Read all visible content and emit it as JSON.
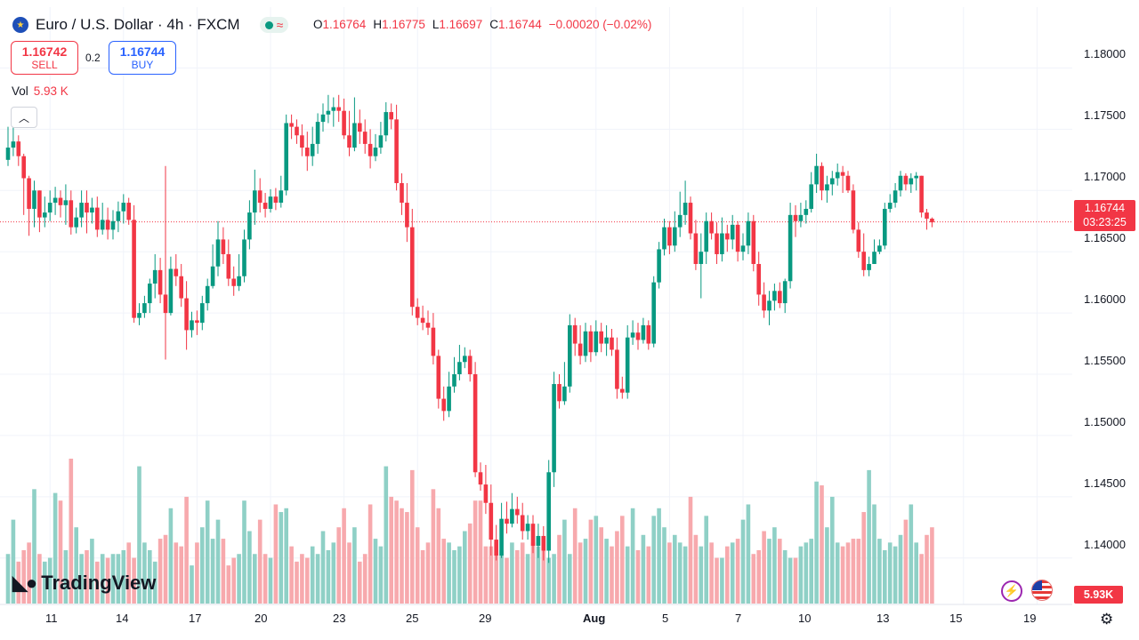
{
  "header": {
    "title": "Euro / U.S. Dollar · 4h · FXCM",
    "symbol_icon": "euro-flag-icon",
    "ohlc": {
      "open_label": "O",
      "open": "1.16764",
      "high_label": "H",
      "high": "1.16775",
      "low_label": "L",
      "low": "1.16697",
      "close_label": "C",
      "close": "1.16744",
      "change": "−0.00020 (−0.02%)"
    }
  },
  "trade": {
    "sell_price": "1.16742",
    "sell_label": "SELL",
    "spread": "0.2",
    "buy_price": "1.16744",
    "buy_label": "BUY"
  },
  "volume_legend": {
    "label": "Vol",
    "value": "5.93 K"
  },
  "price_tag": {
    "price": "1.16744",
    "countdown": "03:23:25"
  },
  "volume_tag": "5.93K",
  "logo": "TradingView",
  "colors": {
    "up": "#089981",
    "down": "#f23645",
    "up_vol": "#8fd0c6",
    "down_vol": "#f7a9ad",
    "grid": "#f0f3fa"
  },
  "icons": {
    "collapse": "chevron-up-icon",
    "alert": "lightning-icon",
    "flag": "us-flag-icon",
    "settings": "gear-icon"
  },
  "chart_data": {
    "type": "candlestick",
    "price_axis": {
      "ticks": [
        "1.18000",
        "1.17500",
        "1.17000",
        "1.16500",
        "1.16000",
        "1.15500",
        "1.15000",
        "1.14500",
        "1.14000"
      ],
      "range": [
        1.1365,
        1.1825
      ]
    },
    "time_axis": {
      "ticks": [
        {
          "label": "11",
          "bar": 8
        },
        {
          "label": "14",
          "bar": 22
        },
        {
          "label": "17",
          "bar": 36
        },
        {
          "label": "20",
          "bar": 50
        },
        {
          "label": "23",
          "bar": 64
        },
        {
          "label": "25",
          "bar": 78
        },
        {
          "label": "29",
          "bar": 92
        },
        {
          "label": "Aug",
          "bar": 112
        },
        {
          "label": "5",
          "bar": 126
        },
        {
          "label": "7",
          "bar": 140
        },
        {
          "label": "10",
          "bar": 154
        },
        {
          "label": "13",
          "bar": 168
        },
        {
          "label": "15",
          "bar": 182
        },
        {
          "label": "19",
          "bar": 196
        }
      ]
    },
    "current_price": 1.16744,
    "closes": [
      1.1735,
      1.174,
      1.1728,
      1.171,
      1.1685,
      1.17,
      1.1678,
      1.1682,
      1.169,
      1.1694,
      1.1688,
      1.1692,
      1.167,
      1.1678,
      1.169,
      1.1682,
      1.1686,
      1.1668,
      1.1676,
      1.1668,
      1.1675,
      1.1683,
      1.169,
      1.1676,
      1.1596,
      1.16,
      1.1608,
      1.1624,
      1.1635,
      1.1615,
      1.16,
      1.1636,
      1.163,
      1.1612,
      1.1586,
      1.1594,
      1.1592,
      1.1608,
      1.1622,
      1.1638,
      1.166,
      1.1648,
      1.1628,
      1.1622,
      1.163,
      1.166,
      1.1682,
      1.17,
      1.169,
      1.1685,
      1.1695,
      1.169,
      1.17,
      1.1755,
      1.1752,
      1.1745,
      1.1735,
      1.1728,
      1.1738,
      1.1756,
      1.1762,
      1.1765,
      1.1768,
      1.1765,
      1.1745,
      1.1735,
      1.1755,
      1.1748,
      1.1738,
      1.1728,
      1.1735,
      1.1745,
      1.1764,
      1.1758,
      1.1706,
      1.169,
      1.167,
      1.1605,
      1.1596,
      1.1592,
      1.1588,
      1.1565,
      1.153,
      1.152,
      1.154,
      1.155,
      1.156,
      1.1565,
      1.155,
      1.147,
      1.146,
      1.1445,
      1.1415,
      1.1402,
      1.1432,
      1.1428,
      1.144,
      1.1435,
      1.1422,
      1.1428,
      1.141,
      1.1418,
      1.1406,
      1.147,
      1.1542,
      1.1528,
      1.154,
      1.159,
      1.1575,
      1.1565,
      1.1585,
      1.1568,
      1.1585,
      1.1575,
      1.158,
      1.157,
      1.1538,
      1.1535,
      1.158,
      1.1584,
      1.1578,
      1.159,
      1.1575,
      1.1625,
      1.1652,
      1.167,
      1.1655,
      1.167,
      1.168,
      1.169,
      1.1665,
      1.164,
      1.165,
      1.1675,
      1.1665,
      1.1648,
      1.1665,
      1.166,
      1.1672,
      1.165,
      1.1655,
      1.1675,
      1.164,
      1.1615,
      1.1602,
      1.161,
      1.1618,
      1.1608,
      1.1626,
      1.168,
      1.1675,
      1.168,
      1.1685,
      1.1705,
      1.172,
      1.17,
      1.1705,
      1.171,
      1.1715,
      1.1712,
      1.17,
      1.1668,
      1.165,
      1.1635,
      1.164,
      1.165,
      1.1655,
      1.1685,
      1.169,
      1.17,
      1.1712,
      1.1705,
      1.171,
      1.1712,
      1.1682,
      1.1677,
      1.1674
    ],
    "highs": [
      1.1752,
      1.1752,
      1.1745,
      1.173,
      1.1712,
      1.1708,
      1.17,
      1.1695,
      1.17,
      1.1703,
      1.17,
      1.1705,
      1.17,
      1.1686,
      1.17,
      1.17,
      1.1694,
      1.1695,
      1.169,
      1.1686,
      1.1684,
      1.1691,
      1.1697,
      1.1694,
      1.1688,
      1.1608,
      1.1614,
      1.1628,
      1.1648,
      1.1645,
      1.172,
      1.1646,
      1.1648,
      1.164,
      1.1626,
      1.1601,
      1.1602,
      1.1614,
      1.1628,
      1.1656,
      1.1675,
      1.167,
      1.166,
      1.1638,
      1.1648,
      1.1668,
      1.1692,
      1.1717,
      1.171,
      1.1698,
      1.1701,
      1.1702,
      1.1712,
      1.1762,
      1.1762,
      1.1758,
      1.1754,
      1.1748,
      1.1752,
      1.1763,
      1.1771,
      1.1778,
      1.1776,
      1.1778,
      1.1775,
      1.1765,
      1.1776,
      1.1766,
      1.1758,
      1.175,
      1.1746,
      1.1756,
      1.1772,
      1.1771,
      1.177,
      1.1714,
      1.1706,
      1.1685,
      1.1612,
      1.1606,
      1.1602,
      1.16,
      1.157,
      1.154,
      1.1552,
      1.1564,
      1.1574,
      1.1572,
      1.157,
      1.156,
      1.1478,
      1.1476,
      1.146,
      1.1427,
      1.1445,
      1.1446,
      1.1453,
      1.145,
      1.1445,
      1.1435,
      1.1435,
      1.1428,
      1.1426,
      1.148,
      1.1552,
      1.155,
      1.156,
      1.1599,
      1.1596,
      1.159,
      1.1592,
      1.159,
      1.1594,
      1.1592,
      1.159,
      1.1587,
      1.158,
      1.1548,
      1.159,
      1.1594,
      1.1592,
      1.1596,
      1.1594,
      1.163,
      1.1658,
      1.1677,
      1.1675,
      1.1683,
      1.1699,
      1.1708,
      1.1695,
      1.1676,
      1.1665,
      1.1682,
      1.1682,
      1.1674,
      1.1678,
      1.1672,
      1.168,
      1.1675,
      1.1665,
      1.1682,
      1.168,
      1.165,
      1.1625,
      1.1618,
      1.1624,
      1.1625,
      1.1628,
      1.169,
      1.1688,
      1.169,
      1.1692,
      1.1715,
      1.173,
      1.1723,
      1.1712,
      1.1716,
      1.1722,
      1.172,
      1.1716,
      1.1705,
      1.1674,
      1.1665,
      1.1646,
      1.166,
      1.166,
      1.169,
      1.1697,
      1.1706,
      1.1716,
      1.1714,
      1.1714,
      1.1715,
      1.1712,
      1.1685,
      1.1678
    ],
    "lows": [
      1.172,
      1.1728,
      1.172,
      1.168,
      1.1663,
      1.167,
      1.1666,
      1.167,
      1.1675,
      1.168,
      1.1678,
      1.1672,
      1.1664,
      1.1665,
      1.167,
      1.1665,
      1.1673,
      1.1662,
      1.1664,
      1.166,
      1.166,
      1.1666,
      1.1673,
      1.1672,
      1.1592,
      1.159,
      1.1596,
      1.16,
      1.1612,
      1.1608,
      1.1562,
      1.1598,
      1.1622,
      1.1605,
      1.157,
      1.158,
      1.1582,
      1.1586,
      1.1602,
      1.162,
      1.163,
      1.164,
      1.1622,
      1.1614,
      1.1618,
      1.1625,
      1.1652,
      1.1672,
      1.1682,
      1.1678,
      1.1682,
      1.1684,
      1.1686,
      1.1696,
      1.1742,
      1.1738,
      1.1728,
      1.1716,
      1.172,
      1.173,
      1.1748,
      1.1755,
      1.1752,
      1.1756,
      1.1742,
      1.1728,
      1.1732,
      1.1738,
      1.173,
      1.1718,
      1.1724,
      1.173,
      1.174,
      1.175,
      1.17,
      1.168,
      1.1658,
      1.1598,
      1.159,
      1.1586,
      1.1582,
      1.1558,
      1.1522,
      1.1512,
      1.1515,
      1.1535,
      1.1545,
      1.1555,
      1.1544,
      1.1466,
      1.1455,
      1.1436,
      1.1402,
      1.1398,
      1.14,
      1.142,
      1.1425,
      1.1428,
      1.1415,
      1.1415,
      1.1404,
      1.14,
      1.1398,
      1.1396,
      1.1458,
      1.1522,
      1.1525,
      1.1535,
      1.1565,
      1.1558,
      1.156,
      1.156,
      1.1565,
      1.1568,
      1.1565,
      1.1565,
      1.153,
      1.153,
      1.153,
      1.1574,
      1.157,
      1.1575,
      1.157,
      1.1572,
      1.162,
      1.1647,
      1.1648,
      1.165,
      1.1662,
      1.1672,
      1.166,
      1.1635,
      1.1612,
      1.164,
      1.166,
      1.164,
      1.1642,
      1.165,
      1.1652,
      1.1642,
      1.1643,
      1.1648,
      1.1634,
      1.1606,
      1.1596,
      1.159,
      1.1602,
      1.1604,
      1.16,
      1.162,
      1.1662,
      1.167,
      1.1673,
      1.1682,
      1.1698,
      1.1692,
      1.169,
      1.1696,
      1.1704,
      1.1698,
      1.1698,
      1.1665,
      1.1645,
      1.163,
      1.163,
      1.164,
      1.1648,
      1.1652,
      1.1682,
      1.1686,
      1.1695,
      1.17,
      1.1698,
      1.17,
      1.1678,
      1.1668,
      1.167
    ],
    "volume": [
      1.3,
      2.2,
      1.1,
      1.4,
      1.6,
      3.0,
      1.3,
      1.1,
      1.2,
      2.9,
      2.7,
      1.4,
      3.8,
      2.0,
      1.3,
      1.4,
      1.7,
      1.1,
      1.3,
      1.2,
      1.3,
      1.3,
      1.4,
      1.6,
      1.2,
      3.6,
      1.6,
      1.4,
      1.1,
      1.7,
      1.8,
      2.5,
      1.6,
      1.5,
      2.8,
      1.0,
      1.6,
      2.0,
      2.7,
      1.7,
      2.2,
      1.7,
      1.0,
      1.2,
      1.3,
      2.7,
      1.9,
      1.3,
      2.2,
      1.3,
      1.2,
      2.6,
      2.4,
      2.5,
      1.5,
      1.1,
      1.3,
      1.2,
      1.5,
      1.3,
      1.9,
      1.4,
      1.6,
      2.0,
      2.5,
      1.6,
      2.0,
      1.1,
      1.3,
      2.6,
      1.7,
      1.5,
      3.6,
      2.8,
      2.7,
      2.5,
      2.4,
      3.5,
      2.0,
      1.4,
      1.6,
      3.0,
      2.5,
      1.7,
      1.6,
      1.4,
      1.5,
      1.9,
      2.1,
      2.7,
      2.7,
      1.5,
      1.5,
      1.6,
      1.4,
      1.2,
      1.6,
      1.4,
      1.6,
      1.3,
      1.6,
      1.5,
      1.4,
      1.2,
      1.3,
      1.8,
      2.2,
      1.3,
      2.5,
      1.6,
      1.7,
      2.2,
      2.3,
      2.0,
      1.7,
      1.5,
      1.9,
      2.3,
      1.5,
      2.5,
      1.4,
      1.8,
      1.5,
      2.3,
      2.5,
      2.0,
      1.6,
      1.8,
      1.6,
      1.5,
      2.8,
      1.8,
      1.5,
      2.3,
      1.6,
      1.2,
      1.2,
      1.5,
      1.6,
      1.7,
      2.2,
      2.6,
      1.3,
      1.4,
      1.9,
      1.7,
      2.0,
      1.7,
      1.4,
      1.2,
      1.2,
      1.5,
      1.6,
      1.7,
      3.2,
      3.1,
      2.0,
      2.8,
      1.6,
      1.5,
      1.6,
      1.7,
      1.7,
      2.4,
      3.5,
      2.6,
      1.7,
      1.4,
      1.6,
      1.5,
      1.8,
      2.2,
      2.6,
      1.6,
      1.3,
      1.8,
      2.0,
      1.6,
      2.1,
      1.5,
      1.7,
      1.4,
      1.6,
      1.5,
      0.8
    ]
  }
}
